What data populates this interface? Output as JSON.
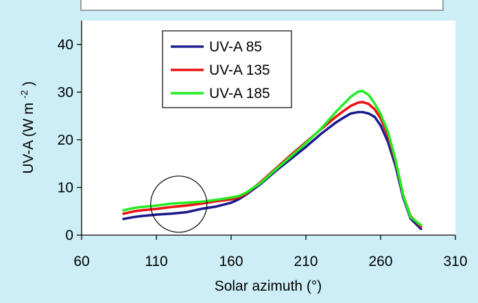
{
  "colors": {
    "background": "#cdeef6",
    "plot_area": "#ffffff",
    "uva85": "#1a1a8c",
    "uva135": "#ee1111",
    "uva185": "#22ee22"
  },
  "chart_data": {
    "type": "line",
    "title": "",
    "xlabel": "Solar azimuth (°)",
    "ylabel_main": "UV-A (W m",
    "ylabel_sup": "-2",
    "ylabel_close": ")",
    "xlim": [
      60,
      310
    ],
    "ylim": [
      0,
      45
    ],
    "xticks": [
      "60",
      "110",
      "160",
      "210",
      "260",
      "310"
    ],
    "yticks": [
      "0",
      "10",
      "20",
      "30",
      "40"
    ],
    "xtick_values": [
      60,
      110,
      160,
      210,
      260,
      310
    ],
    "ytick_values": [
      0,
      10,
      20,
      30,
      40
    ],
    "grid": false,
    "legend_position": "top-left",
    "annotation": "circle around x≈125, y≈6",
    "series": [
      {
        "name": "UV-A 85",
        "color": "#1a1a8c",
        "x": [
          88,
          95,
          100,
          110,
          120,
          130,
          140,
          150,
          160,
          165,
          170,
          180,
          190,
          200,
          210,
          220,
          230,
          235,
          240,
          245,
          248,
          252,
          256,
          260,
          265,
          270,
          275,
          280,
          287
        ],
        "y": [
          3.4,
          3.8,
          4.0,
          4.3,
          4.5,
          4.8,
          5.5,
          6.0,
          6.8,
          7.5,
          8.5,
          10.8,
          13.5,
          16.0,
          18.5,
          21.2,
          23.6,
          24.6,
          25.5,
          25.8,
          25.8,
          25.5,
          24.8,
          23.0,
          19.5,
          14.5,
          8.0,
          3.5,
          1.3
        ]
      },
      {
        "name": "UV-A 135",
        "color": "#ee1111",
        "x": [
          88,
          95,
          100,
          110,
          120,
          130,
          140,
          150,
          160,
          165,
          170,
          180,
          190,
          200,
          210,
          220,
          230,
          235,
          240,
          245,
          248,
          252,
          256,
          260,
          265,
          270,
          275,
          280,
          287
        ],
        "y": [
          4.5,
          5.0,
          5.2,
          5.5,
          5.9,
          6.2,
          6.6,
          7.1,
          7.5,
          7.9,
          8.7,
          11.2,
          14.0,
          16.8,
          19.5,
          22.2,
          24.8,
          26.0,
          27.1,
          27.8,
          27.9,
          27.5,
          26.4,
          24.5,
          20.8,
          15.5,
          8.5,
          4.0,
          1.8
        ]
      },
      {
        "name": "UV-A 185",
        "color": "#22ee22",
        "x": [
          88,
          95,
          100,
          110,
          120,
          130,
          140,
          150,
          160,
          165,
          170,
          180,
          190,
          200,
          210,
          220,
          230,
          235,
          240,
          245,
          248,
          252,
          256,
          260,
          265,
          270,
          275,
          280,
          287
        ],
        "y": [
          5.2,
          5.7,
          5.9,
          6.2,
          6.6,
          6.8,
          7.0,
          7.4,
          7.9,
          8.2,
          8.9,
          11.0,
          13.8,
          16.5,
          19.3,
          22.3,
          25.8,
          27.4,
          29.0,
          30.1,
          30.2,
          29.4,
          27.6,
          25.4,
          21.6,
          15.8,
          8.5,
          3.8,
          2.1
        ]
      }
    ]
  }
}
